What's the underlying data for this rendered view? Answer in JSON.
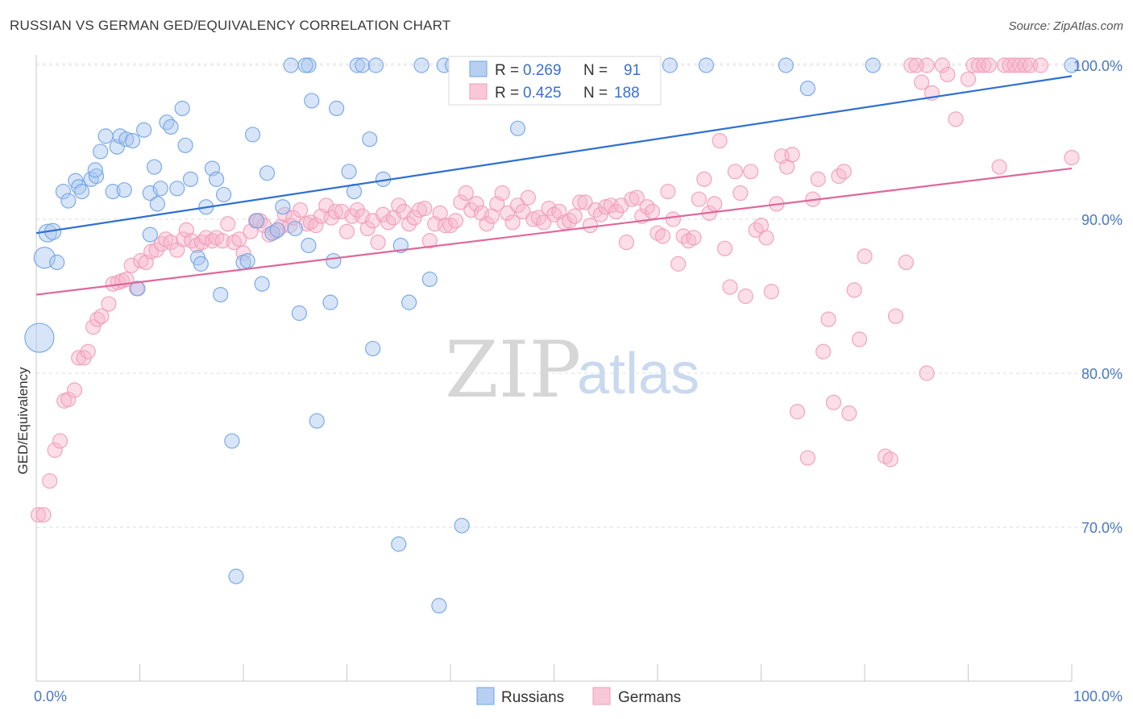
{
  "title": "RUSSIAN VS GERMAN GED/EQUIVALENCY CORRELATION CHART",
  "source": "Source: ZipAtlas.com",
  "watermark": {
    "zip": "ZIP",
    "atlas": "atlas"
  },
  "colors": {
    "russians": "#6fa3e6",
    "germans": "#f19bb8",
    "russians_line": "#2f6fd0",
    "germans_line": "#e0679a",
    "tick": "#4a78c2"
  },
  "legend_box": {
    "r_label": "R = ",
    "n_label": "N = ",
    "russians": {
      "r": "0.269",
      "n": "91"
    },
    "germans": {
      "r": "0.425",
      "n": "188"
    }
  },
  "chart_data": {
    "type": "scatter",
    "title": "RUSSIAN VS GERMAN GED/EQUIVALENCY CORRELATION CHART",
    "xlabel": "",
    "ylabel": "GED/Equivalency",
    "xlim": [
      0,
      100
    ],
    "ylim": [
      60.0,
      102.0
    ],
    "x_tick_labels": [
      "0.0%",
      "100.0%"
    ],
    "y_ticks": [
      70.0,
      80.0,
      90.0,
      100.0
    ],
    "y_tick_labels": [
      "70.0%",
      "80.0%",
      "90.0%",
      "100.0%"
    ],
    "grid": true,
    "legend_position": "bottom-center",
    "series": [
      {
        "name": "Russians",
        "r": 0.269,
        "n": 91,
        "trend": {
          "x": [
            0,
            100
          ],
          "y": [
            89.1,
            99.3
          ]
        },
        "points": [
          [
            0.3,
            82.3
          ],
          [
            0.8,
            87.5
          ],
          [
            1.1,
            89.1
          ],
          [
            1.6,
            89.2
          ],
          [
            2.0,
            87.2
          ],
          [
            2.6,
            91.8
          ],
          [
            3.1,
            91.2
          ],
          [
            3.8,
            92.5
          ],
          [
            4.1,
            92.1
          ],
          [
            4.4,
            91.8
          ],
          [
            5.3,
            92.6
          ],
          [
            5.8,
            92.8
          ],
          [
            5.7,
            93.2
          ],
          [
            6.2,
            94.4
          ],
          [
            6.7,
            95.4
          ],
          [
            7.4,
            91.8
          ],
          [
            7.8,
            94.7
          ],
          [
            8.1,
            95.4
          ],
          [
            8.5,
            91.9
          ],
          [
            8.7,
            95.2
          ],
          [
            9.3,
            95.1
          ],
          [
            9.8,
            85.5
          ],
          [
            10.4,
            95.8
          ],
          [
            11.0,
            91.7
          ],
          [
            11.4,
            93.4
          ],
          [
            11.7,
            91.0
          ],
          [
            12.0,
            92.0
          ],
          [
            12.6,
            96.3
          ],
          [
            13.0,
            96.0
          ],
          [
            13.6,
            92.0
          ],
          [
            14.1,
            97.2
          ],
          [
            14.4,
            94.8
          ],
          [
            14.9,
            92.6
          ],
          [
            15.6,
            87.5
          ],
          [
            15.9,
            87.1
          ],
          [
            16.4,
            90.8
          ],
          [
            17.0,
            93.3
          ],
          [
            17.4,
            92.6
          ],
          [
            17.8,
            85.1
          ],
          [
            18.1,
            91.6
          ],
          [
            18.9,
            75.6
          ],
          [
            19.3,
            66.8
          ],
          [
            20.0,
            87.2
          ],
          [
            20.4,
            87.3
          ],
          [
            20.9,
            95.5
          ],
          [
            21.3,
            89.9
          ],
          [
            21.8,
            85.8
          ],
          [
            22.3,
            93.0
          ],
          [
            22.8,
            89.1
          ],
          [
            23.3,
            89.3
          ],
          [
            23.8,
            90.8
          ],
          [
            24.6,
            100.0
          ],
          [
            25.0,
            89.4
          ],
          [
            25.4,
            83.9
          ],
          [
            26.3,
            100.0
          ],
          [
            26.0,
            100.0
          ],
          [
            26.3,
            88.3
          ],
          [
            26.6,
            97.7
          ],
          [
            27.1,
            76.9
          ],
          [
            28.4,
            84.6
          ],
          [
            28.7,
            87.3
          ],
          [
            29.0,
            97.2
          ],
          [
            30.2,
            93.1
          ],
          [
            30.7,
            91.8
          ],
          [
            31.0,
            100.0
          ],
          [
            31.5,
            100.0
          ],
          [
            32.2,
            95.2
          ],
          [
            32.5,
            81.6
          ],
          [
            32.8,
            100.0
          ],
          [
            33.5,
            92.6
          ],
          [
            35.2,
            88.3
          ],
          [
            35.0,
            68.9
          ],
          [
            36.0,
            84.6
          ],
          [
            37.2,
            100.0
          ],
          [
            38.0,
            86.1
          ],
          [
            38.9,
            64.9
          ],
          [
            39.4,
            100.0
          ],
          [
            40.2,
            100.0
          ],
          [
            41.1,
            70.1
          ],
          [
            46.5,
            95.9
          ],
          [
            47.2,
            100.0
          ],
          [
            51.0,
            100.0
          ],
          [
            51.7,
            100.0
          ],
          [
            52.8,
            100.0
          ],
          [
            61.2,
            100.0
          ],
          [
            64.7,
            100.0
          ],
          [
            72.4,
            100.0
          ],
          [
            74.5,
            98.5
          ],
          [
            80.8,
            100.0
          ],
          [
            100.0,
            100.0
          ],
          [
            11.0,
            89.0
          ]
        ]
      },
      {
        "name": "Germans",
        "r": 0.425,
        "n": 188,
        "trend": {
          "x": [
            0,
            100
          ],
          "y": [
            85.1,
            93.3
          ]
        },
        "points": [
          [
            0.2,
            70.8
          ],
          [
            0.7,
            70.8
          ],
          [
            1.3,
            73.0
          ],
          [
            1.8,
            75.0
          ],
          [
            2.3,
            75.6
          ],
          [
            2.7,
            78.2
          ],
          [
            3.1,
            78.3
          ],
          [
            3.7,
            78.9
          ],
          [
            4.1,
            81.0
          ],
          [
            4.6,
            81.0
          ],
          [
            5.0,
            81.4
          ],
          [
            5.5,
            83.0
          ],
          [
            5.9,
            83.5
          ],
          [
            6.3,
            83.7
          ],
          [
            7.0,
            84.5
          ],
          [
            7.4,
            85.8
          ],
          [
            7.9,
            85.9
          ],
          [
            8.3,
            86.0
          ],
          [
            8.7,
            86.1
          ],
          [
            9.2,
            87.0
          ],
          [
            9.7,
            85.5
          ],
          [
            10.1,
            87.3
          ],
          [
            10.6,
            87.2
          ],
          [
            11.1,
            87.9
          ],
          [
            11.6,
            88.0
          ],
          [
            12.1,
            88.4
          ],
          [
            12.5,
            88.7
          ],
          [
            13.0,
            88.5
          ],
          [
            13.6,
            88.0
          ],
          [
            14.2,
            88.7
          ],
          [
            14.5,
            89.3
          ],
          [
            15.0,
            88.6
          ],
          [
            15.5,
            88.3
          ],
          [
            16.0,
            88.5
          ],
          [
            16.4,
            88.8
          ],
          [
            17.0,
            88.6
          ],
          [
            17.4,
            88.8
          ],
          [
            18.0,
            88.6
          ],
          [
            18.5,
            89.7
          ],
          [
            19.1,
            88.5
          ],
          [
            19.6,
            88.7
          ],
          [
            20.0,
            87.8
          ],
          [
            20.7,
            89.2
          ],
          [
            21.2,
            89.9
          ],
          [
            21.6,
            89.9
          ],
          [
            22.0,
            89.6
          ],
          [
            22.5,
            89.0
          ],
          [
            23.1,
            89.2
          ],
          [
            23.6,
            89.5
          ],
          [
            24.0,
            90.3
          ],
          [
            24.5,
            89.6
          ],
          [
            24.8,
            90.1
          ],
          [
            25.5,
            90.6
          ],
          [
            26.1,
            89.7
          ],
          [
            26.5,
            89.8
          ],
          [
            27.0,
            89.6
          ],
          [
            27.5,
            90.2
          ],
          [
            28.0,
            90.9
          ],
          [
            28.5,
            90.1
          ],
          [
            28.9,
            90.5
          ],
          [
            29.5,
            90.5
          ],
          [
            30.0,
            89.2
          ],
          [
            30.5,
            90.2
          ],
          [
            31.0,
            90.6
          ],
          [
            31.5,
            90.2
          ],
          [
            32.0,
            89.4
          ],
          [
            32.5,
            89.9
          ],
          [
            33.0,
            88.5
          ],
          [
            33.5,
            90.3
          ],
          [
            34.0,
            89.8
          ],
          [
            34.5,
            90.1
          ],
          [
            35.0,
            90.9
          ],
          [
            35.5,
            90.5
          ],
          [
            36.0,
            89.7
          ],
          [
            36.5,
            90.1
          ],
          [
            37.0,
            90.6
          ],
          [
            37.5,
            90.7
          ],
          [
            38.0,
            88.6
          ],
          [
            38.5,
            89.7
          ],
          [
            39.0,
            90.4
          ],
          [
            39.5,
            89.6
          ],
          [
            40.0,
            89.6
          ],
          [
            40.5,
            89.9
          ],
          [
            41.0,
            91.1
          ],
          [
            41.5,
            91.7
          ],
          [
            42.0,
            90.6
          ],
          [
            42.5,
            91.0
          ],
          [
            43.0,
            90.4
          ],
          [
            43.5,
            89.7
          ],
          [
            44.0,
            90.2
          ],
          [
            44.5,
            91.0
          ],
          [
            45.0,
            91.7
          ],
          [
            45.5,
            90.4
          ],
          [
            46.0,
            89.8
          ],
          [
            46.5,
            90.9
          ],
          [
            47.0,
            90.5
          ],
          [
            47.5,
            91.4
          ],
          [
            48.0,
            90.0
          ],
          [
            48.5,
            90.1
          ],
          [
            49.0,
            89.8
          ],
          [
            49.5,
            90.7
          ],
          [
            50.0,
            90.3
          ],
          [
            50.5,
            90.5
          ],
          [
            51.0,
            89.8
          ],
          [
            51.5,
            89.9
          ],
          [
            52.0,
            90.2
          ],
          [
            52.5,
            91.1
          ],
          [
            53.0,
            91.1
          ],
          [
            53.5,
            89.6
          ],
          [
            54.0,
            90.6
          ],
          [
            54.5,
            90.3
          ],
          [
            55.0,
            90.8
          ],
          [
            55.5,
            90.9
          ],
          [
            56.0,
            90.5
          ],
          [
            56.5,
            90.9
          ],
          [
            57.0,
            88.5
          ],
          [
            57.5,
            91.3
          ],
          [
            58.0,
            91.4
          ],
          [
            58.5,
            90.2
          ],
          [
            59.0,
            90.8
          ],
          [
            59.5,
            90.5
          ],
          [
            60.0,
            89.1
          ],
          [
            60.5,
            88.9
          ],
          [
            61.0,
            91.8
          ],
          [
            61.5,
            90.0
          ],
          [
            62.0,
            87.1
          ],
          [
            62.5,
            88.9
          ],
          [
            63.0,
            88.6
          ],
          [
            63.5,
            88.8
          ],
          [
            64.0,
            91.3
          ],
          [
            64.5,
            92.6
          ],
          [
            65.0,
            90.4
          ],
          [
            65.5,
            91.0
          ],
          [
            66.0,
            95.1
          ],
          [
            66.5,
            88.1
          ],
          [
            67.0,
            85.6
          ],
          [
            67.5,
            93.1
          ],
          [
            68.0,
            91.7
          ],
          [
            68.5,
            85.0
          ],
          [
            69.0,
            93.1
          ],
          [
            69.5,
            89.3
          ],
          [
            70.0,
            89.6
          ],
          [
            70.5,
            88.8
          ],
          [
            71.0,
            85.3
          ],
          [
            71.5,
            91.0
          ],
          [
            72.0,
            94.1
          ],
          [
            72.5,
            93.4
          ],
          [
            73.0,
            94.2
          ],
          [
            73.5,
            77.5
          ],
          [
            74.5,
            74.5
          ],
          [
            75.0,
            91.3
          ],
          [
            75.5,
            92.6
          ],
          [
            76.0,
            81.4
          ],
          [
            76.5,
            83.5
          ],
          [
            77.0,
            78.1
          ],
          [
            77.5,
            92.8
          ],
          [
            78.0,
            93.1
          ],
          [
            78.5,
            77.4
          ],
          [
            79.0,
            85.4
          ],
          [
            79.5,
            82.2
          ],
          [
            80.0,
            87.6
          ],
          [
            82.0,
            74.6
          ],
          [
            82.5,
            74.4
          ],
          [
            83.0,
            83.7
          ],
          [
            84.0,
            87.2
          ],
          [
            84.5,
            100.0
          ],
          [
            85.5,
            98.9
          ],
          [
            86.0,
            80.0
          ],
          [
            86.0,
            100.0
          ],
          [
            86.5,
            98.2
          ],
          [
            87.5,
            100.0
          ],
          [
            88.0,
            99.4
          ],
          [
            88.8,
            96.5
          ],
          [
            90.0,
            99.1
          ],
          [
            90.5,
            100.0
          ],
          [
            91.0,
            100.0
          ],
          [
            91.5,
            100.0
          ],
          [
            92.0,
            100.0
          ],
          [
            93.0,
            93.4
          ],
          [
            93.5,
            100.0
          ],
          [
            94.0,
            100.0
          ],
          [
            94.5,
            100.0
          ],
          [
            95.0,
            100.0
          ],
          [
            95.5,
            100.0
          ],
          [
            96.0,
            100.0
          ],
          [
            97.0,
            100.0
          ],
          [
            100.0,
            94.0
          ],
          [
            85.0,
            100.0
          ]
        ]
      }
    ]
  },
  "bottom_legend": {
    "russians": "Russians",
    "germans": "Germans"
  }
}
